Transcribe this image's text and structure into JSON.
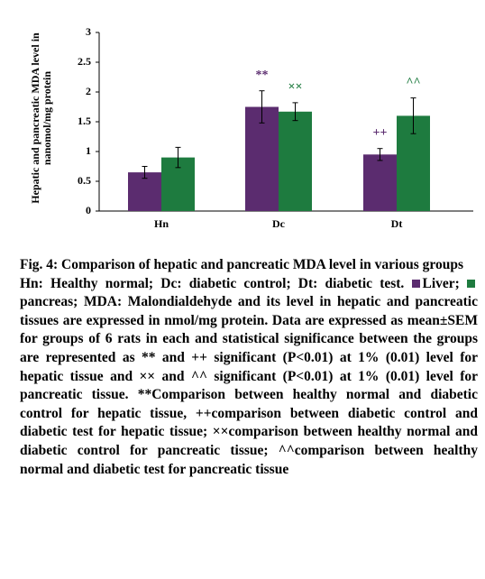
{
  "chart_data": {
    "type": "bar",
    "y_label": [
      "Hepatic and pancreatic MDA level in",
      "nanomol/mg protein"
    ],
    "categories": [
      "Hn",
      "Dc",
      "Dt"
    ],
    "series": [
      {
        "name": "Liver",
        "color": "#5b2c6f",
        "values": [
          0.65,
          1.75,
          0.95
        ],
        "errors": [
          0.1,
          0.27,
          0.1
        ],
        "annotations": [
          null,
          "**",
          "++"
        ]
      },
      {
        "name": "pancreas",
        "color": "#1e7b3f",
        "values": [
          0.9,
          1.67,
          1.6
        ],
        "errors": [
          0.17,
          0.15,
          0.3
        ],
        "annotations": [
          null,
          "××",
          "^^"
        ]
      }
    ],
    "ylim": [
      0,
      3
    ],
    "yticks": [
      0,
      0.5,
      1,
      1.5,
      2,
      2.5,
      3
    ],
    "grid": false
  },
  "caption": {
    "title": "Fig. 4: Comparison of hepatic and pancreatic MDA level in various groups",
    "abbreviations": "Hn: Healthy normal; Dc: diabetic control; Dt: diabetic test.",
    "legend_separator": ";",
    "notes": "MDA: Malondialdehyde and its level in hepatic and pancreatic tissues are expressed in nmol/mg protein. Data are expressed as mean±SEM for groups of 6 rats in each and statistical significance between the groups are represented as ** and ++ significant (P<0.01) at 1% (0.01) level for hepatic tissue and ×× and ^^ significant (P<0.01) at 1% (0.01) level for pancreatic tissue. **Comparison between healthy normal and diabetic control for hepatic tissue, ++comparison between diabetic control and diabetic test for hepatic tissue; ××comparison between healthy normal and diabetic control for pancreatic tissue; ^^comparison between healthy normal and diabetic test for pancreatic tissue"
  }
}
